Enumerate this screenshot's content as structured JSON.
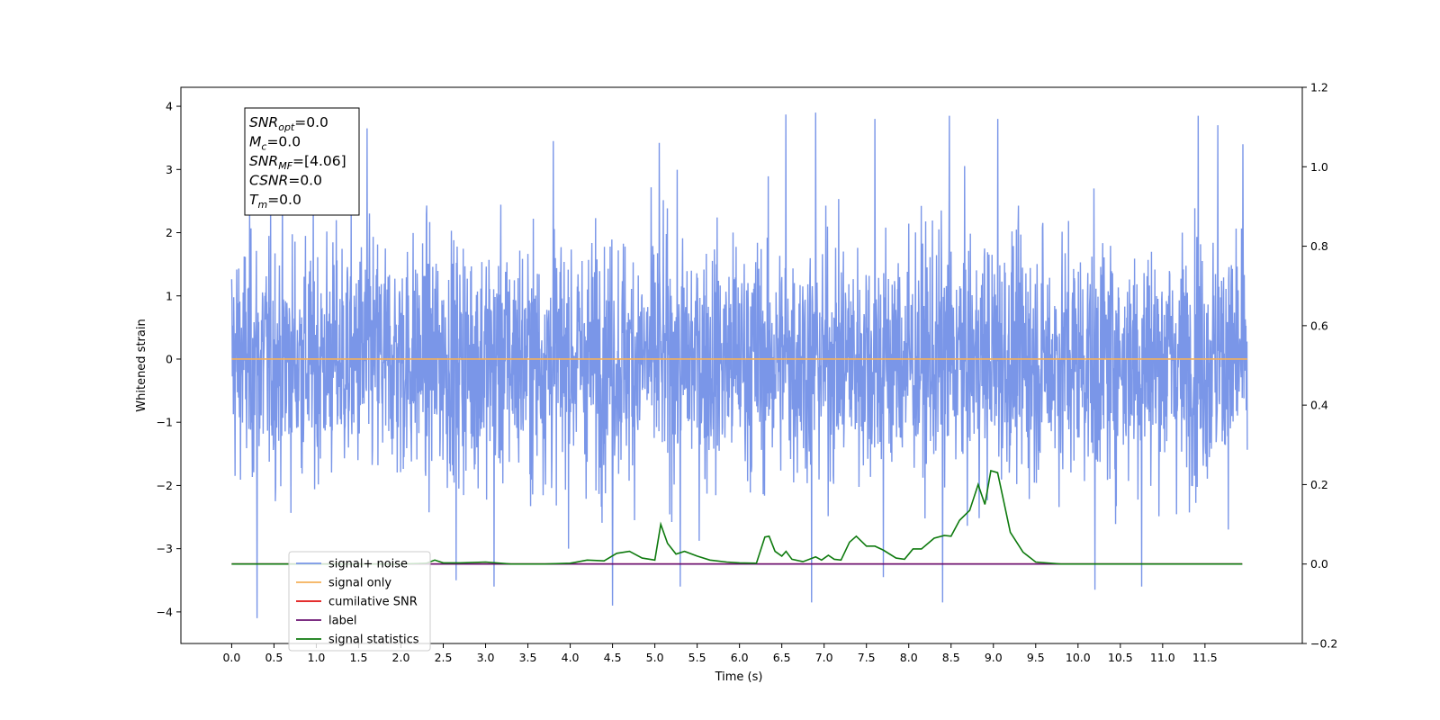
{
  "chart_data": {
    "type": "line",
    "xlabel": "Time (s)",
    "ylabel": "Whitened strain",
    "xlim": [
      -0.6,
      12.65
    ],
    "ylim": [
      -4.5,
      4.3
    ],
    "y2lim": [
      -0.2,
      1.2
    ],
    "xticks": [
      "0.0",
      "0.5",
      "1.0",
      "1.5",
      "2.0",
      "2.5",
      "3.0",
      "3.5",
      "4.0",
      "4.5",
      "5.0",
      "5.5",
      "6.0",
      "6.5",
      "7.0",
      "7.5",
      "8.0",
      "8.5",
      "9.0",
      "9.5",
      "10.0",
      "10.5",
      "11.0",
      "11.5"
    ],
    "yticks": [
      "4",
      "3",
      "2",
      "1",
      "0",
      "−1",
      "−2",
      "−3",
      "−4"
    ],
    "y2ticks": [
      "1.2",
      "1.0",
      "0.8",
      "0.6",
      "0.4",
      "0.2",
      "0.0",
      "−0.2"
    ],
    "noise": {
      "x_start": 0.0,
      "x_end": 12.0,
      "sample_count": 3000,
      "envelope": 2.2,
      "color": "#7a96e8",
      "spikes": [
        {
          "x": 0.3,
          "y": -4.1
        },
        {
          "x": 1.6,
          "y": 3.65
        },
        {
          "x": 3.8,
          "y": 3.45
        },
        {
          "x": 4.5,
          "y": -3.9
        },
        {
          "x": 5.05,
          "y": 3.42
        },
        {
          "x": 6.55,
          "y": 3.87
        },
        {
          "x": 6.85,
          "y": -3.85
        },
        {
          "x": 6.9,
          "y": 3.9
        },
        {
          "x": 7.6,
          "y": 3.8
        },
        {
          "x": 8.4,
          "y": -3.85
        },
        {
          "x": 8.48,
          "y": 3.85
        },
        {
          "x": 9.05,
          "y": 3.8
        },
        {
          "x": 10.2,
          "y": -3.65
        },
        {
          "x": 10.75,
          "y": -3.6
        },
        {
          "x": 11.42,
          "y": 3.85
        },
        {
          "x": 11.65,
          "y": 3.7
        },
        {
          "x": 11.95,
          "y": 3.4
        },
        {
          "x": 2.65,
          "y": -3.5
        },
        {
          "x": 3.1,
          "y": -3.6
        },
        {
          "x": 5.3,
          "y": -3.6
        },
        {
          "x": 7.7,
          "y": -3.45
        }
      ]
    },
    "series": [
      {
        "name": "signal+ noise",
        "color": "#7a96e8",
        "axis": "left"
      },
      {
        "name": "signal only",
        "color": "#f5b15a",
        "axis": "left",
        "x": [
          0.0,
          12.0
        ],
        "y": [
          0.0,
          0.0
        ]
      },
      {
        "name": "cumilative SNR",
        "color": "#e01010",
        "axis": "right",
        "x": [
          0.0,
          11.94
        ],
        "y": [
          0.0,
          0.0
        ]
      },
      {
        "name": "label",
        "color": "#6a1070",
        "axis": "right",
        "x": [
          0.0,
          11.94
        ],
        "y": [
          0.0,
          0.0
        ]
      },
      {
        "name": "signal statistics",
        "color": "#0e7a0e",
        "axis": "right",
        "x": [
          0.0,
          1.0,
          2.0,
          2.3,
          2.4,
          2.5,
          2.7,
          3.0,
          3.3,
          3.7,
          4.0,
          4.2,
          4.4,
          4.55,
          4.7,
          4.85,
          5.0,
          5.07,
          5.15,
          5.25,
          5.35,
          5.5,
          5.65,
          5.85,
          6.0,
          6.2,
          6.3,
          6.35,
          6.42,
          6.5,
          6.55,
          6.62,
          6.75,
          6.9,
          6.97,
          7.05,
          7.12,
          7.2,
          7.3,
          7.38,
          7.5,
          7.6,
          7.7,
          7.85,
          7.95,
          8.05,
          8.15,
          8.3,
          8.42,
          8.5,
          8.6,
          8.72,
          8.82,
          8.9,
          8.97,
          9.05,
          9.12,
          9.2,
          9.35,
          9.5,
          9.8,
          10.2,
          10.5,
          11.94
        ],
        "y": [
          0.0,
          0.0,
          0.0,
          0.002,
          0.01,
          0.003,
          0.003,
          0.005,
          0.0,
          0.0,
          0.002,
          0.01,
          0.008,
          0.027,
          0.032,
          0.015,
          0.01,
          0.1,
          0.052,
          0.025,
          0.032,
          0.02,
          0.01,
          0.005,
          0.003,
          0.002,
          0.068,
          0.07,
          0.032,
          0.02,
          0.032,
          0.012,
          0.006,
          0.018,
          0.01,
          0.022,
          0.012,
          0.01,
          0.055,
          0.07,
          0.045,
          0.045,
          0.035,
          0.015,
          0.012,
          0.038,
          0.038,
          0.065,
          0.072,
          0.07,
          0.11,
          0.135,
          0.2,
          0.15,
          0.235,
          0.23,
          0.16,
          0.08,
          0.03,
          0.005,
          0.0,
          0.0,
          0.0,
          0.0
        ]
      }
    ],
    "info_box": [
      {
        "main": "SNR",
        "sub": "opt",
        "rest": "=0.0"
      },
      {
        "main": "M",
        "sub": "c",
        "rest": "=0.0"
      },
      {
        "main": "SNR",
        "sub": "MF",
        "rest": "=[4.06]"
      },
      {
        "main": "CSNR",
        "sub": "",
        "rest": "=0.0"
      },
      {
        "main": "T",
        "sub": "m",
        "rest": "=0.0"
      }
    ],
    "legend_placement": "lower-left",
    "grid": false
  }
}
